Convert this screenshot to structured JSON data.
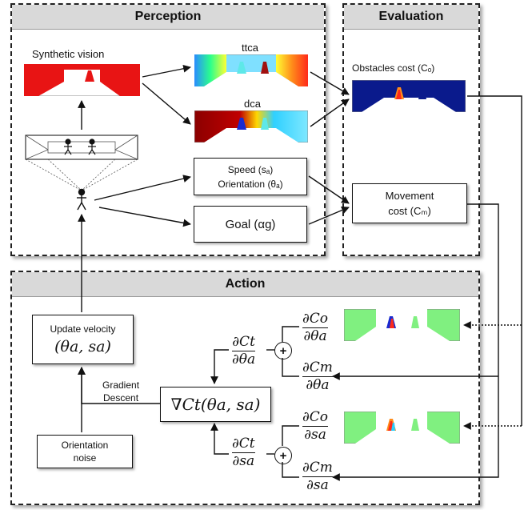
{
  "panels": {
    "perception": "Perception",
    "evaluation": "Evaluation",
    "action": "Action"
  },
  "labels": {
    "synthetic_vision": "Synthetic vision",
    "ttca": "ttca",
    "dca": "dca",
    "obstacles_cost": "Obstacles cost (Cₒ)",
    "speed": "Speed (sₐ)",
    "orientation": "Orientation (θₐ)",
    "goal": "Goal (αg)",
    "movement_cost_line1": "Movement",
    "movement_cost_line2": "cost (Cₘ)",
    "update_velocity": "Update velocity",
    "update_velocity_math": "(θa, sa)",
    "gradient_descent_line1": "Gradient",
    "gradient_descent_line2": "Descent",
    "gradient_math": "∇Ct(θa, sa)",
    "orientation_noise_line1": "Orientation",
    "orientation_noise_line2": "noise"
  },
  "fractions": {
    "dCt_dtheta": {
      "num": "∂Ct",
      "den": "∂θa"
    },
    "dCt_ds": {
      "num": "∂Ct",
      "den": "∂sa"
    },
    "dCo_dtheta": {
      "num": "∂Co",
      "den": "∂θa"
    },
    "dCm_dtheta": {
      "num": "∂Cm",
      "den": "∂θa"
    },
    "dCo_ds": {
      "num": "∂Co",
      "den": "∂sa"
    },
    "dCm_ds": {
      "num": "∂Cm",
      "den": "∂sa"
    }
  },
  "operators": {
    "plus": "+"
  }
}
